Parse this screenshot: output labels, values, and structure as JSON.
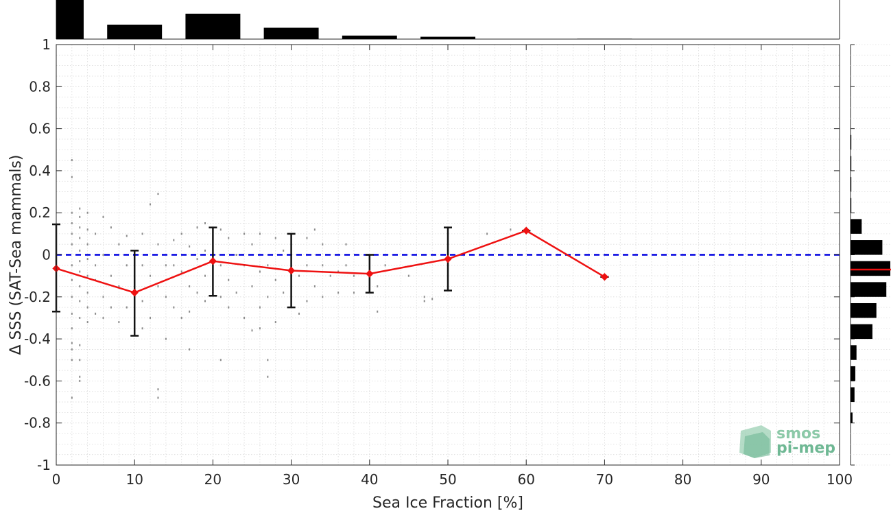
{
  "chart_data": {
    "type": "line",
    "xlabel": "Sea Ice Fraction [%]",
    "ylabel": "Δ SSS (SAT-Sea mammals)",
    "xlim": [
      0,
      100
    ],
    "ylim": [
      -1,
      1
    ],
    "x_ticks": [
      0,
      10,
      20,
      30,
      40,
      50,
      60,
      70,
      80,
      90,
      100
    ],
    "y_ticks": [
      -1,
      -0.8,
      -0.6,
      -0.4,
      -0.2,
      0,
      0.2,
      0.4,
      0.6,
      0.8,
      1
    ],
    "y_tick_labels": [
      "-1",
      "-0.8",
      "-0.6",
      "-0.4",
      "-0.2",
      "0",
      "0.2",
      "0.4",
      "0.6",
      "0.8",
      "1"
    ],
    "grid": "on (minor, dotted)",
    "zero_line": {
      "y": 0,
      "style": "dashed",
      "color": "#0000e0"
    },
    "series": [
      {
        "type": "mean_with_std",
        "color": "#ee1111",
        "x": [
          0,
          10,
          20,
          30,
          40,
          50,
          60,
          70
        ],
        "mean": [
          -0.065,
          -0.18,
          -0.03,
          -0.075,
          -0.09,
          -0.02,
          0.115,
          -0.105
        ],
        "std_low": [
          -0.27,
          -0.385,
          -0.195,
          -0.25,
          -0.18,
          -0.17,
          0.115,
          -0.105
        ],
        "std_high": [
          0.145,
          0.02,
          0.13,
          0.1,
          0.0,
          0.13,
          0.115,
          -0.105
        ]
      }
    ],
    "scatter": {
      "color": "#8c8c8c",
      "points": [
        [
          2,
          0.45
        ],
        [
          2,
          0.37
        ],
        [
          2,
          0.2
        ],
        [
          2,
          0.15
        ],
        [
          2,
          0.1
        ],
        [
          2,
          0.05
        ],
        [
          2,
          -0.05
        ],
        [
          2,
          -0.12
        ],
        [
          2,
          -0.2
        ],
        [
          2,
          -0.28
        ],
        [
          2,
          -0.35
        ],
        [
          2,
          -0.42
        ],
        [
          2,
          -0.45
        ],
        [
          2,
          -0.5
        ],
        [
          2,
          -0.68
        ],
        [
          3,
          0.22
        ],
        [
          3,
          0.18
        ],
        [
          3,
          0.13
        ],
        [
          3,
          0.08
        ],
        [
          3,
          0.02
        ],
        [
          3,
          -0.03
        ],
        [
          3,
          -0.08
        ],
        [
          3,
          -0.15
        ],
        [
          3,
          -0.22
        ],
        [
          3,
          -0.3
        ],
        [
          3,
          -0.43
        ],
        [
          3,
          -0.5
        ],
        [
          3,
          -0.58
        ],
        [
          3,
          -0.6
        ],
        [
          4,
          0.2
        ],
        [
          4,
          0.12
        ],
        [
          4,
          0.05
        ],
        [
          4,
          -0.02
        ],
        [
          4,
          -0.1
        ],
        [
          4,
          -0.18
        ],
        [
          4,
          -0.25
        ],
        [
          4,
          -0.32
        ],
        [
          5,
          0.1
        ],
        [
          5,
          -0.05
        ],
        [
          5,
          -0.12
        ],
        [
          5,
          -0.28
        ],
        [
          6,
          0.18
        ],
        [
          6,
          0.0
        ],
        [
          6,
          -0.2
        ],
        [
          6,
          -0.3
        ],
        [
          7,
          0.13
        ],
        [
          7,
          -0.1
        ],
        [
          7,
          -0.25
        ],
        [
          8,
          0.05
        ],
        [
          8,
          -0.15
        ],
        [
          8,
          -0.32
        ],
        [
          9,
          0.09
        ],
        [
          9,
          -0.05
        ],
        [
          9,
          -0.25
        ],
        [
          11,
          0.1
        ],
        [
          11,
          -0.05
        ],
        [
          11,
          -0.22
        ],
        [
          11,
          -0.35
        ],
        [
          12,
          0.24
        ],
        [
          12,
          -0.1
        ],
        [
          12,
          -0.3
        ],
        [
          13,
          0.29
        ],
        [
          13,
          0.05
        ],
        [
          13,
          -0.15
        ],
        [
          13,
          -0.64
        ],
        [
          13,
          -0.68
        ],
        [
          14,
          -0.05
        ],
        [
          14,
          -0.2
        ],
        [
          14,
          -0.4
        ],
        [
          15,
          0.07
        ],
        [
          15,
          -0.05
        ],
        [
          15,
          -0.25
        ],
        [
          16,
          0.1
        ],
        [
          16,
          -0.08
        ],
        [
          16,
          -0.3
        ],
        [
          17,
          0.04
        ],
        [
          17,
          -0.15
        ],
        [
          17,
          -0.27
        ],
        [
          17,
          -0.45
        ],
        [
          18,
          0.13
        ],
        [
          18,
          -0.02
        ],
        [
          18,
          -0.18
        ],
        [
          19,
          0.15
        ],
        [
          19,
          0.02
        ],
        [
          19,
          -0.1
        ],
        [
          19,
          -0.22
        ],
        [
          21,
          0.12
        ],
        [
          21,
          -0.05
        ],
        [
          21,
          -0.2
        ],
        [
          21,
          -0.5
        ],
        [
          22,
          0.08
        ],
        [
          22,
          -0.12
        ],
        [
          22,
          -0.25
        ],
        [
          23,
          0.0
        ],
        [
          23,
          -0.18
        ],
        [
          24,
          0.1
        ],
        [
          24,
          -0.05
        ],
        [
          24,
          -0.3
        ],
        [
          25,
          0.05
        ],
        [
          25,
          -0.15
        ],
        [
          25,
          -0.36
        ],
        [
          26,
          0.1
        ],
        [
          26,
          -0.08
        ],
        [
          26,
          -0.25
        ],
        [
          26,
          -0.35
        ],
        [
          27,
          -0.05
        ],
        [
          27,
          -0.2
        ],
        [
          27,
          -0.5
        ],
        [
          27,
          -0.58
        ],
        [
          28,
          0.08
        ],
        [
          28,
          -0.12
        ],
        [
          28,
          -0.32
        ],
        [
          29,
          0.02
        ],
        [
          29,
          -0.18
        ],
        [
          31,
          -0.1
        ],
        [
          31,
          -0.28
        ],
        [
          32,
          0.08
        ],
        [
          32,
          -0.05
        ],
        [
          32,
          -0.22
        ],
        [
          33,
          0.12
        ],
        [
          33,
          -0.15
        ],
        [
          34,
          0.05
        ],
        [
          34,
          -0.05
        ],
        [
          34,
          -0.2
        ],
        [
          35,
          -0.1
        ],
        [
          36,
          -0.08
        ],
        [
          36,
          -0.18
        ],
        [
          37,
          0.05
        ],
        [
          37,
          -0.05
        ],
        [
          38,
          -0.1
        ],
        [
          38,
          -0.18
        ],
        [
          41,
          -0.15
        ],
        [
          41,
          -0.27
        ],
        [
          42,
          -0.05
        ],
        [
          45,
          -0.1
        ],
        [
          47,
          -0.2
        ],
        [
          47,
          -0.22
        ],
        [
          48,
          -0.21
        ],
        [
          55,
          0.1
        ],
        [
          58,
          0.12
        ]
      ]
    },
    "top_histogram": {
      "bins": [
        [
          0,
          3.5
        ],
        [
          6.5,
          13.5
        ],
        [
          16.5,
          23.5
        ],
        [
          26.5,
          33.5
        ],
        [
          36.5,
          43.5
        ],
        [
          46.5,
          53.5
        ],
        [
          66.5,
          73.5
        ]
      ],
      "relative_counts": [
        1.0,
        0.37,
        0.65,
        0.29,
        0.09,
        0.06,
        0.01
      ]
    },
    "right_histogram": {
      "bins": [
        [
          -0.8,
          -0.75
        ],
        [
          -0.7,
          -0.63
        ],
        [
          -0.6,
          -0.53
        ],
        [
          -0.5,
          -0.43
        ],
        [
          -0.4,
          -0.33
        ],
        [
          -0.3,
          -0.23
        ],
        [
          -0.2,
          -0.13
        ],
        [
          -0.1,
          -0.03
        ],
        [
          0.0,
          0.07
        ],
        [
          0.1,
          0.17
        ],
        [
          0.2,
          0.27
        ],
        [
          0.3,
          0.37
        ],
        [
          0.4,
          0.47
        ],
        [
          0.5,
          0.57
        ]
      ],
      "relative_counts": [
        0.05,
        0.1,
        0.12,
        0.15,
        0.55,
        0.65,
        0.9,
        1.0,
        0.8,
        0.28,
        0.02,
        0.02,
        0.02,
        0.02
      ],
      "mean_marker": {
        "y": -0.07,
        "color": "#ee1111"
      }
    }
  },
  "logo": {
    "line1": "smos",
    "line2": "pi-mep"
  }
}
